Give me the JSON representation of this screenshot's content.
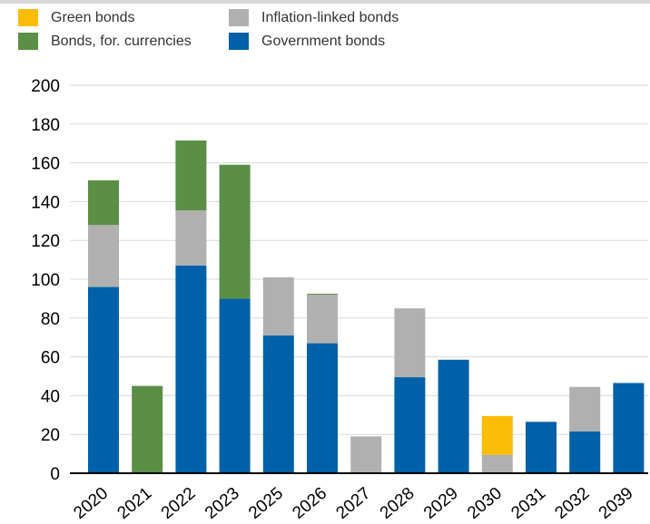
{
  "chart_data": {
    "type": "bar",
    "stacked": true,
    "categories": [
      "2020",
      "2021",
      "2022",
      "2023",
      "2025",
      "2026",
      "2027",
      "2028",
      "2029",
      "2030",
      "2031",
      "2032",
      "2039"
    ],
    "series": [
      {
        "name": "Government bonds",
        "color": "#0060a8",
        "values": [
          96,
          0,
          107,
          90,
          71,
          67,
          0,
          49.5,
          58.5,
          0,
          26.5,
          21.5,
          46.5
        ]
      },
      {
        "name": "Inflation-linked bonds",
        "color": "#b0b0b0",
        "values": [
          32,
          0,
          28.5,
          0,
          30,
          25,
          19,
          35.5,
          0,
          9.5,
          0,
          23,
          0
        ]
      },
      {
        "name": "Bonds, for. currencies",
        "color": "#5a8f45",
        "values": [
          23,
          45,
          36,
          69,
          0,
          0.5,
          0,
          0,
          0,
          0,
          0,
          0,
          0
        ]
      },
      {
        "name": "Green bonds",
        "color": "#fbbc05",
        "values": [
          0,
          0,
          0,
          0,
          0,
          0,
          0,
          0,
          0,
          20,
          0,
          0,
          0
        ]
      }
    ],
    "ylim": [
      0,
      200
    ],
    "yticks": [
      "0",
      "20",
      "40",
      "60",
      "80",
      "100",
      "120",
      "140",
      "160",
      "180",
      "200"
    ],
    "grid": true,
    "legend_position": "top"
  },
  "legend": {
    "items": [
      {
        "label": "Green bonds",
        "color": "#fbbc05"
      },
      {
        "label": "Bonds, for. currencies",
        "color": "#5a8f45"
      },
      {
        "label": "Inflation-linked bonds",
        "color": "#b0b0b0"
      },
      {
        "label": "Government bonds",
        "color": "#0060a8"
      }
    ]
  }
}
